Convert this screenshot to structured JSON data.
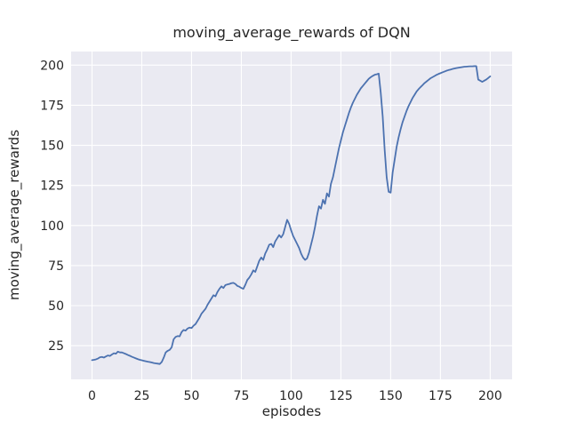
{
  "chart_data": {
    "type": "line",
    "title": "moving_average_rewards of DQN",
    "xlabel": "episodes",
    "ylabel": "moving_average_rewards",
    "xticks": [
      0,
      25,
      50,
      75,
      100,
      125,
      150,
      175,
      200
    ],
    "yticks": [
      25,
      50,
      75,
      100,
      125,
      150,
      175,
      200
    ],
    "xlim": [
      -10.5,
      211
    ],
    "ylim": [
      4,
      208.5
    ],
    "grid": true,
    "legend": "none",
    "style": {
      "line_color": "#4c72b0",
      "plot_bg": "#eaeaf2",
      "grid_color": "#ffffff",
      "fig_bg": "#ffffff",
      "text_color": "#262626"
    },
    "series": [
      {
        "name": "DQN moving average rewards",
        "points": [
          [
            0,
            16
          ],
          [
            1,
            16.2
          ],
          [
            2,
            16.5
          ],
          [
            3,
            17
          ],
          [
            4,
            17.8
          ],
          [
            5,
            18
          ],
          [
            6,
            17.6
          ],
          [
            7,
            18.3
          ],
          [
            8,
            18.9
          ],
          [
            9,
            18.6
          ],
          [
            10,
            19.5
          ],
          [
            11,
            20.3
          ],
          [
            12,
            20
          ],
          [
            13,
            21.3
          ],
          [
            14,
            20.8
          ],
          [
            15,
            20.8
          ],
          [
            16,
            20.3
          ],
          [
            17,
            19.8
          ],
          [
            18,
            19.2
          ],
          [
            19,
            18.7
          ],
          [
            20,
            18.1
          ],
          [
            21,
            17.6
          ],
          [
            22,
            17.1
          ],
          [
            23,
            16.6
          ],
          [
            24,
            16.2
          ],
          [
            25,
            15.9
          ],
          [
            26,
            15.6
          ],
          [
            27,
            15.3
          ],
          [
            28,
            15
          ],
          [
            29,
            14.8
          ],
          [
            30,
            14.5
          ],
          [
            31,
            14.2
          ],
          [
            32,
            14
          ],
          [
            33,
            13.8
          ],
          [
            34,
            13.6
          ],
          [
            35,
            14.8
          ],
          [
            36,
            17.5
          ],
          [
            37,
            20.8
          ],
          [
            38,
            21.8
          ],
          [
            39,
            22.4
          ],
          [
            40,
            24
          ],
          [
            41,
            29
          ],
          [
            42,
            30.5
          ],
          [
            43,
            31
          ],
          [
            44,
            30.8
          ],
          [
            45,
            33.5
          ],
          [
            46,
            34.8
          ],
          [
            47,
            34.4
          ],
          [
            48,
            35.7
          ],
          [
            49,
            36.3
          ],
          [
            50,
            36
          ],
          [
            51,
            37.5
          ],
          [
            52,
            38.5
          ],
          [
            53,
            40.5
          ],
          [
            54,
            42.5
          ],
          [
            55,
            45
          ],
          [
            56,
            46.5
          ],
          [
            57,
            48
          ],
          [
            58,
            50.5
          ],
          [
            59,
            52.5
          ],
          [
            60,
            54.5
          ],
          [
            61,
            56.5
          ],
          [
            62,
            55.8
          ],
          [
            63,
            58.5
          ],
          [
            64,
            60.5
          ],
          [
            65,
            62
          ],
          [
            66,
            61
          ],
          [
            67,
            62.8
          ],
          [
            68,
            63.2
          ],
          [
            69,
            63.5
          ],
          [
            70,
            64
          ],
          [
            71,
            64.2
          ],
          [
            72,
            63.5
          ],
          [
            73,
            62.3
          ],
          [
            74,
            61.8
          ],
          [
            75,
            61
          ],
          [
            76,
            60.5
          ],
          [
            77,
            63
          ],
          [
            78,
            66
          ],
          [
            79,
            67.5
          ],
          [
            80,
            69.5
          ],
          [
            81,
            72
          ],
          [
            82,
            71
          ],
          [
            83,
            74.5
          ],
          [
            84,
            78
          ],
          [
            85,
            80
          ],
          [
            86,
            78.5
          ],
          [
            87,
            82.5
          ],
          [
            88,
            85
          ],
          [
            89,
            88
          ],
          [
            90,
            88.5
          ],
          [
            91,
            86.5
          ],
          [
            92,
            90
          ],
          [
            93,
            92
          ],
          [
            94,
            94
          ],
          [
            95,
            92.5
          ],
          [
            96,
            94.5
          ],
          [
            97,
            99
          ],
          [
            98,
            103.5
          ],
          [
            99,
            101
          ],
          [
            100,
            97
          ],
          [
            101,
            93.5
          ],
          [
            102,
            91
          ],
          [
            103,
            88.5
          ],
          [
            104,
            86
          ],
          [
            105,
            82.5
          ],
          [
            106,
            80
          ],
          [
            107,
            78.5
          ],
          [
            108,
            79.5
          ],
          [
            109,
            83
          ],
          [
            110,
            88
          ],
          [
            111,
            93
          ],
          [
            112,
            99
          ],
          [
            113,
            106
          ],
          [
            114,
            112
          ],
          [
            115,
            110.5
          ],
          [
            116,
            116
          ],
          [
            117,
            113.5
          ],
          [
            118,
            120
          ],
          [
            119,
            118
          ],
          [
            120,
            126
          ],
          [
            121,
            130
          ],
          [
            122,
            136
          ],
          [
            123,
            142
          ],
          [
            124,
            148
          ],
          [
            125,
            153
          ],
          [
            126,
            158
          ],
          [
            127,
            162
          ],
          [
            128,
            166
          ],
          [
            129,
            170
          ],
          [
            130,
            173.5
          ],
          [
            131,
            176.5
          ],
          [
            132,
            179
          ],
          [
            133,
            181.5
          ],
          [
            134,
            183.5
          ],
          [
            135,
            185.5
          ],
          [
            136,
            187
          ],
          [
            137,
            188.5
          ],
          [
            138,
            190
          ],
          [
            139,
            191.5
          ],
          [
            140,
            192.5
          ],
          [
            141,
            193.3
          ],
          [
            142,
            194
          ],
          [
            143,
            194.3
          ],
          [
            144,
            194.7
          ],
          [
            145,
            183
          ],
          [
            146,
            168
          ],
          [
            147,
            147
          ],
          [
            148,
            130
          ],
          [
            149,
            121
          ],
          [
            150,
            120.5
          ],
          [
            151,
            133
          ],
          [
            152,
            141
          ],
          [
            153,
            149
          ],
          [
            154,
            155
          ],
          [
            155,
            160
          ],
          [
            156,
            164.5
          ],
          [
            157,
            168
          ],
          [
            158,
            171.5
          ],
          [
            159,
            174.5
          ],
          [
            160,
            177
          ],
          [
            161,
            179.5
          ],
          [
            162,
            181.5
          ],
          [
            163,
            183.5
          ],
          [
            164,
            185
          ],
          [
            165,
            186.3
          ],
          [
            166,
            187.5
          ],
          [
            167,
            188.8
          ],
          [
            168,
            189.8
          ],
          [
            169,
            190.8
          ],
          [
            170,
            191.8
          ],
          [
            171,
            192.5
          ],
          [
            172,
            193.2
          ],
          [
            173,
            193.9
          ],
          [
            174,
            194.5
          ],
          [
            175,
            195
          ],
          [
            176,
            195.5
          ],
          [
            177,
            196
          ],
          [
            178,
            196.5
          ],
          [
            179,
            196.9
          ],
          [
            180,
            197.2
          ],
          [
            181,
            197.6
          ],
          [
            182,
            197.9
          ],
          [
            183,
            198.2
          ],
          [
            184,
            198.4
          ],
          [
            185,
            198.6
          ],
          [
            186,
            198.8
          ],
          [
            187,
            199
          ],
          [
            188,
            199.1
          ],
          [
            189,
            199.2
          ],
          [
            190,
            199.3
          ],
          [
            191,
            199.3
          ],
          [
            192,
            199.4
          ],
          [
            193,
            199.4
          ],
          [
            194,
            191
          ],
          [
            195,
            190.3
          ],
          [
            196,
            189.6
          ],
          [
            197,
            190.3
          ],
          [
            198,
            191
          ],
          [
            199,
            192
          ],
          [
            200,
            193
          ]
        ]
      }
    ]
  }
}
